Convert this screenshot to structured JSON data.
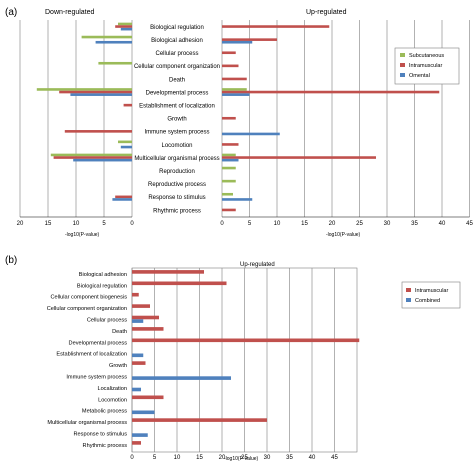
{
  "panel_a": {
    "tag": "(a)",
    "down_title": "Down-regulated",
    "up_title": "Up-regulated",
    "xlabel": "-log10(P-value)"
  },
  "panel_b": {
    "tag": "(b)",
    "up_title": "Up-regulated",
    "xlabel": "-log10(P-value)"
  },
  "colors": {
    "subcutaneous": "#9bbb59",
    "intramuscular": "#c0504d",
    "omental": "#4f81bd",
    "combined": "#4f81bd",
    "grid": "#7f7f7f"
  },
  "chart_data": [
    {
      "type": "bar",
      "orientation": "horizontal",
      "panel": "(a) left",
      "title": "Down-regulated",
      "xlabel": "-log10(P-value)",
      "xlim": [
        20,
        0
      ],
      "x_reversed": true,
      "ticks": [
        20,
        15,
        10,
        5,
        0
      ],
      "grid": true,
      "categories": [
        "Biological regulation",
        "Biological adhesion",
        "Cellular process",
        "Cellular component organization",
        "Death",
        "Developmental process",
        "Establishment of localization",
        "Growth",
        "Immune system process",
        "Locomotion",
        "Multicellular organismal process",
        "Reproduction",
        "Reproductive process",
        "Response to stimulus",
        "Rhythmic process"
      ],
      "series": [
        {
          "name": "Subcutaneous",
          "values": [
            2.5,
            9,
            0,
            6,
            0,
            17,
            0,
            0,
            0,
            2.5,
            14.5,
            0,
            0,
            0,
            0
          ]
        },
        {
          "name": "Intramuscular",
          "values": [
            3,
            0,
            0,
            0,
            0,
            13,
            1.5,
            0,
            12,
            0,
            14,
            0,
            0,
            3,
            0
          ]
        },
        {
          "name": "Omental",
          "values": [
            2,
            6.5,
            0,
            0,
            0,
            11,
            0,
            0,
            0,
            2,
            10.5,
            0,
            0,
            3.5,
            0
          ]
        }
      ]
    },
    {
      "type": "bar",
      "orientation": "horizontal",
      "panel": "(a) right",
      "title": "Up-regulated",
      "xlabel": "-log10(P-value)",
      "xlim": [
        0,
        45
      ],
      "ticks": [
        0,
        5,
        10,
        15,
        20,
        25,
        30,
        35,
        40,
        45
      ],
      "grid": true,
      "legend": {
        "position": "top-right",
        "entries": [
          "Subcutaneous",
          "Intramuscular",
          "Omental"
        ]
      },
      "categories": [
        "Biological regulation",
        "Biological adhesion",
        "Cellular process",
        "Cellular component organization",
        "Death",
        "Developmental process",
        "Establishment of localization",
        "Growth",
        "Immune system process",
        "Locomotion",
        "Multicellular organismal process",
        "Reproduction",
        "Reproductive process",
        "Response to stimulus",
        "Rhythmic process"
      ],
      "series": [
        {
          "name": "Subcutaneous",
          "values": [
            0,
            0,
            0,
            0,
            0,
            4.5,
            0,
            0,
            0,
            0,
            2.5,
            2.5,
            2.5,
            2,
            0
          ]
        },
        {
          "name": "Intramuscular",
          "values": [
            19.5,
            10,
            2.5,
            3,
            4.5,
            39.5,
            0,
            2.5,
            0,
            3,
            28,
            0,
            0,
            0,
            2.5
          ]
        },
        {
          "name": "Omental",
          "values": [
            0,
            5.5,
            0,
            0,
            0,
            5,
            0,
            0,
            10.5,
            0,
            3,
            0,
            0,
            5.5,
            0
          ]
        }
      ]
    },
    {
      "type": "bar",
      "orientation": "horizontal",
      "panel": "(b)",
      "title": "Up-regulated",
      "xlabel": "-log10(P-value)",
      "xlim": [
        0,
        50
      ],
      "ticks": [
        0,
        5,
        10,
        15,
        20,
        25,
        30,
        35,
        40,
        45
      ],
      "grid": true,
      "legend": {
        "position": "right",
        "entries": [
          "Intramuscular",
          "Combined"
        ]
      },
      "categories": [
        "Biological adhesion",
        "Biological regulation",
        "Cellular component biogenesis",
        "Cellular component organization",
        "Cellular process",
        "Death",
        "Developmental process",
        "Establishment of localization",
        "Growth",
        "Immune system process",
        "Localization",
        "Locomotion",
        "Metabolic process",
        "Multicellular organismal process",
        "Response to stimulus",
        "Rhythmic process"
      ],
      "series": [
        {
          "name": "Intramuscular",
          "values": [
            16,
            21,
            1.5,
            4,
            6,
            7,
            50.5,
            0,
            3,
            0,
            0,
            7,
            0,
            30,
            0,
            2
          ]
        },
        {
          "name": "Combined",
          "values": [
            0,
            0,
            0,
            0,
            2.5,
            0,
            0,
            2.5,
            0,
            22,
            2,
            0,
            5,
            0,
            3.5,
            0
          ]
        }
      ]
    }
  ]
}
